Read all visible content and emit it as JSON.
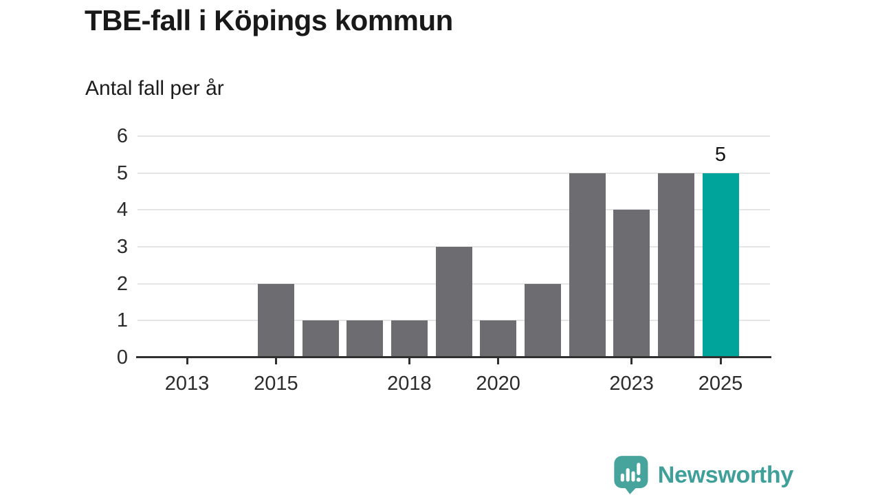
{
  "chart_data": {
    "type": "bar",
    "title": "TBE-fall i Köpings kommun",
    "subtitle": "Antal fall per år",
    "categories": [
      "2013",
      "2014",
      "2015",
      "2016",
      "2017",
      "2018",
      "2019",
      "2020",
      "2021",
      "2022",
      "2023",
      "2024",
      "2025"
    ],
    "values": [
      0,
      0,
      2,
      1,
      1,
      1,
      3,
      1,
      2,
      5,
      4,
      5,
      5
    ],
    "highlight_index": 12,
    "annotation": {
      "text": "5",
      "category": "2025"
    },
    "xlabel": "",
    "ylabel": "",
    "ylim": [
      0,
      6
    ],
    "yticks": [
      "0",
      "1",
      "2",
      "3",
      "4",
      "5",
      "6"
    ],
    "xticks_shown": [
      "2013",
      "2015",
      "2018",
      "2020",
      "2023",
      "2025"
    ],
    "grid": true,
    "legend": "none",
    "colors": {
      "bar": "#6c6c71",
      "highlight": "#00a49b",
      "gridline": "#e5e5e5",
      "axis": "#2f2f2f",
      "label": "#2b2b2b"
    }
  },
  "branding": {
    "name": "Newsworthy",
    "logo_icon": "bar-chart-speech-bubble",
    "icon_color": "#47a49d",
    "text_color": "#3f9f99"
  }
}
